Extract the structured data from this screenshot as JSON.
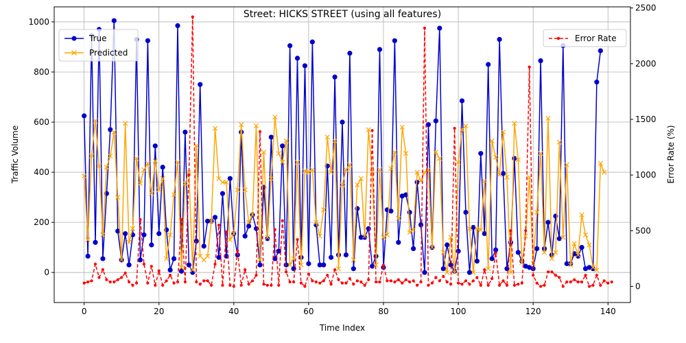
{
  "chart_data": {
    "type": "line",
    "title": "Street: HICKS STREET (using all features)",
    "xlabel": "Time Index",
    "ylabel": "Traffic Volume",
    "ylabel_right": "Error Rate (%)",
    "xlim": [
      -8,
      146
    ],
    "ylim": [
      -120,
      1060
    ],
    "ylim_right": [
      -145,
      2510
    ],
    "xticks": [
      0,
      20,
      40,
      60,
      80,
      100,
      120,
      140
    ],
    "yticks": [
      0,
      200,
      400,
      600,
      800,
      1000
    ],
    "yticks_right": [
      0,
      500,
      1000,
      1500,
      2000,
      2500
    ],
    "grid": true,
    "legend_left": {
      "placement": "upper-left",
      "entries": [
        "True",
        "Predicted"
      ]
    },
    "legend_right": {
      "placement": "upper-right",
      "entries": [
        "Error Rate"
      ]
    },
    "colors": {
      "true": "#0000cc",
      "predicted": "#ffa500",
      "error": "#ff0000"
    },
    "x_start": 0,
    "series": [
      {
        "name": "True",
        "axis": "left",
        "marker": "circle",
        "values": [
          625,
          65,
          945,
          120,
          970,
          55,
          315,
          570,
          1005,
          165,
          50,
          155,
          30,
          150,
          930,
          50,
          150,
          925,
          110,
          505,
          155,
          420,
          170,
          10,
          55,
          985,
          5,
          560,
          30,
          0,
          125,
          750,
          105,
          205,
          205,
          220,
          60,
          315,
          65,
          375,
          155,
          70,
          560,
          145,
          185,
          230,
          175,
          30,
          340,
          135,
          540,
          55,
          85,
          505,
          30,
          905,
          15,
          855,
          60,
          825,
          35,
          920,
          190,
          30,
          30,
          425,
          60,
          780,
          70,
          600,
          70,
          875,
          15,
          255,
          140,
          140,
          175,
          25,
          65,
          890,
          20,
          250,
          245,
          925,
          120,
          305,
          310,
          240,
          95,
          360,
          190,
          0,
          590,
          100,
          605,
          975,
          15,
          110,
          30,
          5,
          85,
          685,
          240,
          0,
          180,
          45,
          475,
          155,
          830,
          55,
          90,
          930,
          395,
          15,
          120,
          455,
          80,
          45,
          25,
          20,
          15,
          95,
          845,
          95,
          200,
          70,
          225,
          135,
          905,
          35,
          35,
          75,
          65,
          100,
          15,
          20,
          15,
          760,
          885
        ]
      },
      {
        "name": "Predicted",
        "axis": "left",
        "marker": "x",
        "values": [
          385,
          130,
          465,
          605,
          425,
          150,
          420,
          465,
          560,
          300,
          50,
          595,
          120,
          175,
          455,
          355,
          410,
          435,
          315,
          445,
          330,
          375,
          55,
          150,
          310,
          440,
          20,
          355,
          400,
          10,
          505,
          65,
          50,
          65,
          205,
          575,
          375,
          360,
          360,
          130,
          155,
          330,
          590,
          330,
          200,
          230,
          585,
          50,
          480,
          140,
          375,
          620,
          475,
          440,
          525,
          30,
          55,
          440,
          30,
          405,
          400,
          410,
          200,
          145,
          250,
          540,
          400,
          525,
          15,
          350,
          410,
          430,
          50,
          350,
          375,
          145,
          570,
          400,
          30,
          410,
          140,
          150,
          415,
          480,
          215,
          580,
          475,
          160,
          170,
          400,
          365,
          400,
          410,
          100,
          480,
          455,
          80,
          0,
          140,
          0,
          440,
          570,
          585,
          175,
          0,
          175,
          170,
          365,
          15,
          525,
          460,
          390,
          560,
          380,
          0,
          595,
          450,
          40,
          145,
          380,
          35,
          240,
          475,
          80,
          615,
          55,
          80,
          520,
          140,
          430,
          30,
          115,
          70,
          230,
          150,
          110,
          20,
          10,
          435,
          400
        ]
      },
      {
        "name": "Error Rate",
        "axis": "right",
        "marker": "dot",
        "values": [
          30,
          40,
          50,
          200,
          80,
          150,
          60,
          40,
          40,
          60,
          80,
          120,
          40,
          10,
          30,
          600,
          200,
          30,
          180,
          10,
          140,
          10,
          50,
          100,
          30,
          40,
          600,
          40,
          1000,
          2420,
          40,
          20,
          50,
          50,
          10,
          200,
          550,
          10,
          490,
          10,
          0,
          320,
          10,
          150,
          20,
          50,
          100,
          1390,
          20,
          10,
          10,
          510,
          10,
          590,
          130,
          40,
          40,
          420,
          30,
          0,
          110,
          50,
          40,
          30,
          50,
          100,
          20,
          150,
          60,
          30,
          30,
          70,
          20,
          50,
          40,
          10,
          60,
          1400,
          40,
          40,
          190,
          50,
          50,
          40,
          60,
          30,
          60,
          40,
          50,
          10,
          40,
          2320,
          10,
          30,
          80,
          50,
          90,
          40,
          20,
          1420,
          30,
          20,
          50,
          20,
          50,
          80,
          10,
          150,
          10,
          70,
          300,
          10,
          50,
          10,
          500,
          10,
          20,
          30,
          500,
          1970,
          100,
          30,
          0,
          10,
          130,
          130,
          100,
          80,
          0,
          40,
          40,
          60,
          40,
          40,
          100,
          0,
          10,
          100,
          10,
          50,
          30,
          40
        ]
      }
    ]
  }
}
